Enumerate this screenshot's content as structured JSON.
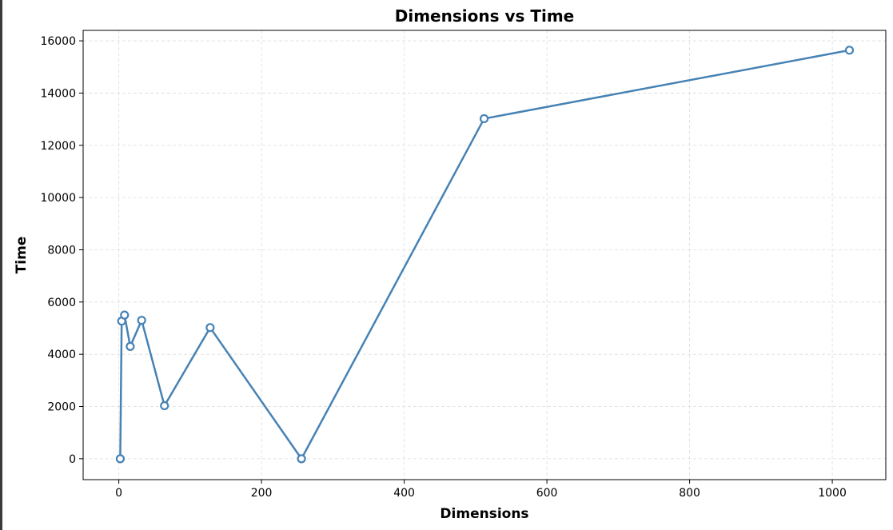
{
  "chart_data": {
    "type": "line",
    "title": "Dimensions vs Time",
    "xlabel": "Dimensions",
    "ylabel": "Time",
    "xlim": [
      -50,
      1075
    ],
    "ylim": [
      -800,
      16400
    ],
    "xticks": [
      0,
      200,
      400,
      600,
      800,
      1000
    ],
    "yticks": [
      0,
      2000,
      4000,
      6000,
      8000,
      10000,
      12000,
      14000,
      16000
    ],
    "grid": true,
    "line_color": "#4682b4",
    "series": [
      {
        "x": [
          2,
          4,
          8,
          16,
          32,
          64,
          128,
          256,
          512,
          1024
        ],
        "y": [
          0,
          5270,
          5500,
          4300,
          5300,
          2030,
          5020,
          0,
          13020,
          15640
        ]
      }
    ]
  }
}
